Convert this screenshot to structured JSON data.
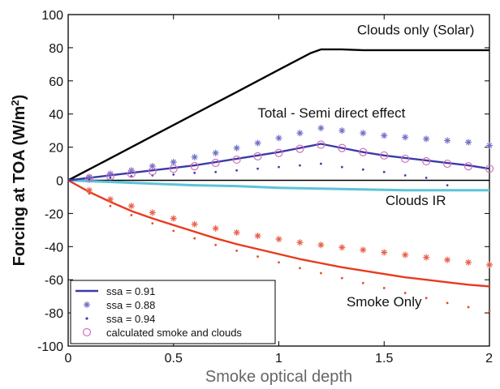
{
  "chart_data": {
    "type": "line",
    "xlabel": "Smoke optical depth",
    "ylabel": "Forcing at TOA (W/m",
    "ylabel_sup": "2",
    "ylabel_close": ")",
    "xlim": [
      0,
      2
    ],
    "ylim": [
      -100,
      100
    ],
    "xticks": [
      0,
      0.5,
      1,
      1.5,
      2
    ],
    "xtick_labels": [
      "0",
      "0.5",
      "1",
      "1.5",
      "2"
    ],
    "yticks": [
      -100,
      -80,
      -60,
      -40,
      -20,
      0,
      20,
      40,
      60,
      80,
      100
    ],
    "ytick_labels": [
      "-100",
      "-80",
      "-60",
      "-40",
      "-20",
      "0",
      "20",
      "40",
      "60",
      "80",
      "100"
    ],
    "grid": false,
    "legend_position": "bottom-left",
    "annotations": [
      {
        "text": "Clouds only (Solar)",
        "x": 1.65,
        "y": 88
      },
      {
        "text": "Total - Semi direct effect",
        "x": 1.25,
        "y": 38
      },
      {
        "text": "Clouds IR",
        "x": 1.65,
        "y": -15
      },
      {
        "text": "Smoke Only",
        "x": 1.5,
        "y": -76
      }
    ],
    "series": [
      {
        "key": "clouds_solar",
        "style": "line",
        "color": "#000000",
        "x": [
          0,
          0.2,
          0.4,
          0.6,
          0.8,
          1.0,
          1.15,
          1.2,
          1.3,
          1.4,
          1.6,
          1.8,
          2.0
        ],
        "y": [
          0,
          13.3,
          26.7,
          40,
          53.3,
          66.7,
          76.7,
          79,
          79,
          78.5,
          78.5,
          78.5,
          78.5
        ]
      },
      {
        "key": "clouds_ir",
        "style": "line",
        "color": "#5bc4d8",
        "x": [
          0,
          0.2,
          0.4,
          0.6,
          0.8,
          1.0,
          1.2,
          1.4,
          1.6,
          1.8,
          2.0
        ],
        "y": [
          0,
          -1,
          -2,
          -3,
          -3.5,
          -4.5,
          -5,
          -5.5,
          -6,
          -6,
          -6
        ]
      },
      {
        "key": "smoke_091",
        "style": "line",
        "color": "#e83a1e",
        "x": [
          0,
          0.1,
          0.2,
          0.3,
          0.4,
          0.5,
          0.6,
          0.7,
          0.8,
          0.9,
          1.0,
          1.1,
          1.2,
          1.3,
          1.4,
          1.5,
          1.6,
          1.7,
          1.8,
          1.9,
          2.0
        ],
        "y": [
          0,
          -7,
          -13,
          -18.5,
          -23,
          -27,
          -31,
          -35,
          -38.5,
          -41.5,
          -44.5,
          -47.5,
          -50,
          -52.5,
          -54.5,
          -56.5,
          -58.5,
          -60,
          -61.5,
          -63,
          -64
        ]
      },
      {
        "key": "total_091",
        "style": "line",
        "color": "#3a3aa8",
        "x": [
          0,
          0.1,
          0.2,
          0.3,
          0.4,
          0.5,
          0.6,
          0.7,
          0.8,
          0.9,
          1.0,
          1.1,
          1.2,
          1.3,
          1.4,
          1.5,
          1.6,
          1.7,
          1.8,
          1.9,
          2.0
        ],
        "y": [
          0,
          1.5,
          3,
          4.5,
          6,
          7.5,
          9,
          11,
          13,
          15,
          17,
          19.5,
          22,
          19.5,
          17,
          15,
          13.5,
          12,
          10.5,
          9,
          7
        ]
      },
      {
        "key": "total_088",
        "style": "star",
        "color": "#7070c8",
        "x": [
          0.1,
          0.2,
          0.3,
          0.4,
          0.5,
          0.6,
          0.7,
          0.8,
          0.9,
          1.0,
          1.1,
          1.2,
          1.3,
          1.4,
          1.5,
          1.6,
          1.7,
          1.8,
          1.9,
          2.0
        ],
        "y": [
          2,
          4,
          6,
          8.5,
          11,
          14,
          16.5,
          19.5,
          22.5,
          25.5,
          28.5,
          31.5,
          30,
          28.5,
          27,
          26,
          25,
          24,
          23,
          21
        ]
      },
      {
        "key": "smoke_088",
        "style": "star",
        "color": "#e8604a",
        "x": [
          0.1,
          0.2,
          0.3,
          0.4,
          0.5,
          0.6,
          0.7,
          0.8,
          0.9,
          1.0,
          1.1,
          1.2,
          1.3,
          1.4,
          1.5,
          1.6,
          1.7,
          1.8,
          1.9,
          2.0
        ],
        "y": [
          -6,
          -11.5,
          -15.5,
          -19.5,
          -23,
          -26.5,
          -29,
          -31.5,
          -33.5,
          -35.5,
          -37.5,
          -39,
          -40.5,
          -42,
          -43.5,
          -45,
          -46.5,
          -48,
          -49.5,
          -51
        ]
      },
      {
        "key": "total_094",
        "style": "dot",
        "color": "#4040b0",
        "x": [
          0.1,
          0.2,
          0.3,
          0.4,
          0.5,
          0.6,
          0.7,
          0.8,
          0.9,
          1.0,
          1.1,
          1.2,
          1.3,
          1.4,
          1.5,
          1.6,
          1.7,
          1.8
        ],
        "y": [
          0.5,
          1.5,
          2.5,
          3,
          3.5,
          4.5,
          5,
          6,
          7,
          8,
          9,
          10,
          8,
          6.5,
          5,
          3,
          1.5,
          -3
        ]
      },
      {
        "key": "smoke_094",
        "style": "dot",
        "color": "#e84a2e",
        "x": [
          0.1,
          0.2,
          0.3,
          0.4,
          0.5,
          0.6,
          0.7,
          0.8,
          0.9,
          1.0,
          1.1,
          1.2,
          1.3,
          1.4,
          1.5,
          1.6,
          1.7,
          1.8,
          1.9,
          2.0
        ],
        "y": [
          -8,
          -15.5,
          -21,
          -26,
          -30.5,
          -35,
          -39,
          -42.5,
          -46,
          -49.5,
          -53,
          -56,
          -59,
          -62,
          -65,
          -68,
          -71,
          -74,
          -76.5,
          -79
        ]
      },
      {
        "key": "calculated",
        "style": "circle",
        "color": "#d070b8",
        "x": [
          0.1,
          0.2,
          0.3,
          0.4,
          0.5,
          0.6,
          0.7,
          0.8,
          0.9,
          1.0,
          1.1,
          1.2,
          1.3,
          1.4,
          1.5,
          1.6,
          1.7,
          1.8,
          1.9,
          2.0
        ],
        "y": [
          1,
          2.5,
          4,
          5.5,
          7,
          8.5,
          10.5,
          12.5,
          14.5,
          16.5,
          19,
          21.5,
          19.5,
          17,
          15,
          13,
          11.5,
          10,
          8.5,
          7
        ]
      }
    ],
    "legend": [
      {
        "label": "ssa = 0.91",
        "style": "line",
        "color": "#3a3aa8"
      },
      {
        "label": "ssa = 0.88",
        "style": "star",
        "color": "#7070c8"
      },
      {
        "label": "ssa = 0.94",
        "style": "dot",
        "color": "#4040b0"
      },
      {
        "label": "calculated smoke and clouds",
        "style": "circle",
        "color": "#d070b8"
      }
    ]
  }
}
